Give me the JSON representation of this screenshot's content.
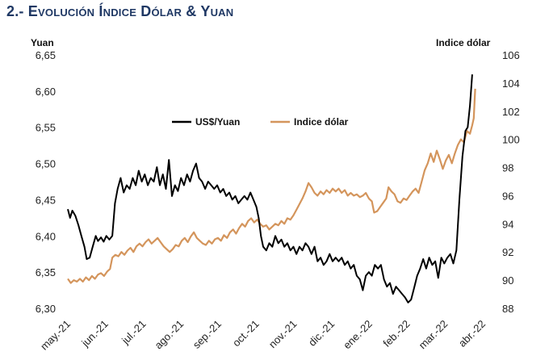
{
  "heading": "2.- Evolución Índice Dólar & Yuan",
  "chart_data": {
    "type": "line",
    "title": "",
    "left_axis": {
      "label": "Yuan",
      "range": [
        6.3,
        6.65
      ],
      "ticks": [
        "6,65",
        "6,60",
        "6,55",
        "6,50",
        "6,45",
        "6,40",
        "6,35",
        "6,30"
      ],
      "tick_values": [
        6.65,
        6.6,
        6.55,
        6.5,
        6.45,
        6.4,
        6.35,
        6.3
      ]
    },
    "right_axis": {
      "label": "Indice dólar",
      "range": [
        88,
        106
      ],
      "ticks": [
        "106",
        "104",
        "102",
        "100",
        "98",
        "96",
        "94",
        "92",
        "90",
        "88"
      ],
      "tick_values": [
        106,
        104,
        102,
        100,
        98,
        96,
        94,
        92,
        90,
        88
      ]
    },
    "x_axis": {
      "labels": [
        "may.-21",
        "jun.-21",
        "jul.-21",
        "ago.-21",
        "sep.-21",
        "oct.-21",
        "nov.-21",
        "dic.-21",
        "ene.-22",
        "feb.-22",
        "mar.-22",
        "abr.-22"
      ],
      "range": [
        0,
        11.3
      ]
    },
    "grid": false,
    "legend_position": "upper-center",
    "series": [
      {
        "name": "US$/Yuan",
        "axis": "left",
        "color": "#000000",
        "points": [
          [
            0.0,
            6.437
          ],
          [
            0.06,
            6.425
          ],
          [
            0.12,
            6.435
          ],
          [
            0.2,
            6.428
          ],
          [
            0.28,
            6.415
          ],
          [
            0.36,
            6.4
          ],
          [
            0.44,
            6.385
          ],
          [
            0.5,
            6.368
          ],
          [
            0.58,
            6.37
          ],
          [
            0.66,
            6.385
          ],
          [
            0.74,
            6.4
          ],
          [
            0.8,
            6.393
          ],
          [
            0.88,
            6.398
          ],
          [
            0.95,
            6.392
          ],
          [
            1.02,
            6.4
          ],
          [
            1.1,
            6.395
          ],
          [
            1.18,
            6.4
          ],
          [
            1.25,
            6.445
          ],
          [
            1.32,
            6.465
          ],
          [
            1.4,
            6.48
          ],
          [
            1.48,
            6.46
          ],
          [
            1.56,
            6.47
          ],
          [
            1.64,
            6.465
          ],
          [
            1.72,
            6.48
          ],
          [
            1.8,
            6.47
          ],
          [
            1.88,
            6.49
          ],
          [
            1.96,
            6.475
          ],
          [
            2.04,
            6.485
          ],
          [
            2.12,
            6.47
          ],
          [
            2.2,
            6.48
          ],
          [
            2.28,
            6.475
          ],
          [
            2.36,
            6.495
          ],
          [
            2.44,
            6.47
          ],
          [
            2.52,
            6.485
          ],
          [
            2.6,
            6.465
          ],
          [
            2.68,
            6.505
          ],
          [
            2.76,
            6.455
          ],
          [
            2.84,
            6.47
          ],
          [
            2.92,
            6.462
          ],
          [
            3.0,
            6.48
          ],
          [
            3.08,
            6.47
          ],
          [
            3.16,
            6.485
          ],
          [
            3.24,
            6.475
          ],
          [
            3.32,
            6.49
          ],
          [
            3.4,
            6.5
          ],
          [
            3.48,
            6.48
          ],
          [
            3.56,
            6.475
          ],
          [
            3.64,
            6.465
          ],
          [
            3.72,
            6.475
          ],
          [
            3.8,
            6.47
          ],
          [
            3.88,
            6.465
          ],
          [
            3.96,
            6.47
          ],
          [
            4.04,
            6.46
          ],
          [
            4.12,
            6.465
          ],
          [
            4.2,
            6.455
          ],
          [
            4.28,
            6.46
          ],
          [
            4.36,
            6.45
          ],
          [
            4.44,
            6.455
          ],
          [
            4.52,
            6.445
          ],
          [
            4.6,
            6.45
          ],
          [
            4.68,
            6.455
          ],
          [
            4.76,
            6.45
          ],
          [
            4.84,
            6.46
          ],
          [
            4.92,
            6.45
          ],
          [
            5.0,
            6.44
          ],
          [
            5.06,
            6.425
          ],
          [
            5.12,
            6.4
          ],
          [
            5.18,
            6.385
          ],
          [
            5.26,
            6.38
          ],
          [
            5.34,
            6.39
          ],
          [
            5.42,
            6.385
          ],
          [
            5.5,
            6.4
          ],
          [
            5.58,
            6.39
          ],
          [
            5.66,
            6.395
          ],
          [
            5.74,
            6.385
          ],
          [
            5.82,
            6.39
          ],
          [
            5.9,
            6.38
          ],
          [
            5.98,
            6.385
          ],
          [
            6.06,
            6.375
          ],
          [
            6.14,
            6.385
          ],
          [
            6.22,
            6.38
          ],
          [
            6.3,
            6.39
          ],
          [
            6.38,
            6.385
          ],
          [
            6.46,
            6.375
          ],
          [
            6.54,
            6.385
          ],
          [
            6.62,
            6.365
          ],
          [
            6.7,
            6.37
          ],
          [
            6.78,
            6.36
          ],
          [
            6.86,
            6.365
          ],
          [
            6.94,
            6.375
          ],
          [
            7.02,
            6.365
          ],
          [
            7.1,
            6.37
          ],
          [
            7.18,
            6.365
          ],
          [
            7.26,
            6.37
          ],
          [
            7.34,
            6.36
          ],
          [
            7.42,
            6.365
          ],
          [
            7.5,
            6.355
          ],
          [
            7.58,
            6.36
          ],
          [
            7.66,
            6.345
          ],
          [
            7.74,
            6.34
          ],
          [
            7.82,
            6.325
          ],
          [
            7.9,
            6.345
          ],
          [
            7.98,
            6.35
          ],
          [
            8.06,
            6.345
          ],
          [
            8.14,
            6.36
          ],
          [
            8.22,
            6.355
          ],
          [
            8.3,
            6.36
          ],
          [
            8.38,
            6.34
          ],
          [
            8.46,
            6.33
          ],
          [
            8.54,
            6.335
          ],
          [
            8.62,
            6.32
          ],
          [
            8.7,
            6.33
          ],
          [
            8.78,
            6.325
          ],
          [
            8.86,
            6.32
          ],
          [
            8.94,
            6.315
          ],
          [
            9.02,
            6.308
          ],
          [
            9.1,
            6.312
          ],
          [
            9.18,
            6.328
          ],
          [
            9.26,
            6.345
          ],
          [
            9.34,
            6.355
          ],
          [
            9.42,
            6.368
          ],
          [
            9.5,
            6.355
          ],
          [
            9.58,
            6.37
          ],
          [
            9.66,
            6.36
          ],
          [
            9.74,
            6.365
          ],
          [
            9.82,
            6.342
          ],
          [
            9.9,
            6.37
          ],
          [
            9.98,
            6.362
          ],
          [
            10.06,
            6.37
          ],
          [
            10.14,
            6.375
          ],
          [
            10.22,
            6.362
          ],
          [
            10.3,
            6.38
          ],
          [
            10.38,
            6.45
          ],
          [
            10.46,
            6.51
          ],
          [
            10.54,
            6.545
          ],
          [
            10.6,
            6.55
          ],
          [
            10.66,
            6.58
          ],
          [
            10.72,
            6.623
          ]
        ]
      },
      {
        "name": "Indice dólar",
        "axis": "right",
        "color": "#d4955c",
        "points": [
          [
            0.0,
            90.1
          ],
          [
            0.08,
            89.8
          ],
          [
            0.16,
            90.0
          ],
          [
            0.24,
            89.9
          ],
          [
            0.32,
            90.1
          ],
          [
            0.4,
            89.9
          ],
          [
            0.48,
            90.2
          ],
          [
            0.56,
            90.0
          ],
          [
            0.64,
            90.3
          ],
          [
            0.72,
            90.1
          ],
          [
            0.8,
            90.4
          ],
          [
            0.88,
            90.5
          ],
          [
            0.96,
            90.3
          ],
          [
            1.04,
            90.6
          ],
          [
            1.12,
            90.8
          ],
          [
            1.18,
            91.6
          ],
          [
            1.26,
            91.8
          ],
          [
            1.34,
            91.7
          ],
          [
            1.42,
            92.0
          ],
          [
            1.5,
            91.8
          ],
          [
            1.58,
            92.1
          ],
          [
            1.66,
            92.3
          ],
          [
            1.74,
            92.0
          ],
          [
            1.82,
            92.4
          ],
          [
            1.9,
            92.6
          ],
          [
            1.98,
            92.4
          ],
          [
            2.06,
            92.7
          ],
          [
            2.14,
            92.9
          ],
          [
            2.22,
            92.6
          ],
          [
            2.3,
            92.8
          ],
          [
            2.38,
            93.0
          ],
          [
            2.46,
            92.7
          ],
          [
            2.54,
            92.4
          ],
          [
            2.62,
            92.2
          ],
          [
            2.7,
            92.0
          ],
          [
            2.78,
            92.2
          ],
          [
            2.86,
            92.5
          ],
          [
            2.94,
            92.4
          ],
          [
            3.02,
            92.8
          ],
          [
            3.1,
            93.0
          ],
          [
            3.18,
            92.7
          ],
          [
            3.26,
            93.1
          ],
          [
            3.34,
            93.4
          ],
          [
            3.42,
            93.0
          ],
          [
            3.5,
            92.8
          ],
          [
            3.58,
            92.6
          ],
          [
            3.66,
            92.5
          ],
          [
            3.74,
            92.8
          ],
          [
            3.82,
            92.6
          ],
          [
            3.9,
            92.9
          ],
          [
            3.98,
            93.0
          ],
          [
            4.06,
            92.8
          ],
          [
            4.14,
            93.2
          ],
          [
            4.22,
            93.0
          ],
          [
            4.3,
            93.4
          ],
          [
            4.38,
            93.6
          ],
          [
            4.46,
            93.3
          ],
          [
            4.54,
            93.7
          ],
          [
            4.62,
            94.0
          ],
          [
            4.7,
            93.8
          ],
          [
            4.78,
            94.2
          ],
          [
            4.86,
            94.4
          ],
          [
            4.94,
            94.1
          ],
          [
            5.02,
            94.3
          ],
          [
            5.1,
            94.0
          ],
          [
            5.18,
            93.8
          ],
          [
            5.26,
            93.9
          ],
          [
            5.34,
            93.6
          ],
          [
            5.42,
            93.8
          ],
          [
            5.5,
            94.0
          ],
          [
            5.58,
            93.9
          ],
          [
            5.66,
            94.2
          ],
          [
            5.74,
            94.0
          ],
          [
            5.82,
            94.4
          ],
          [
            5.9,
            94.3
          ],
          [
            5.98,
            94.6
          ],
          [
            6.06,
            95.0
          ],
          [
            6.14,
            95.4
          ],
          [
            6.22,
            95.8
          ],
          [
            6.3,
            96.3
          ],
          [
            6.38,
            96.9
          ],
          [
            6.46,
            96.6
          ],
          [
            6.54,
            96.2
          ],
          [
            6.62,
            96.0
          ],
          [
            6.7,
            96.3
          ],
          [
            6.78,
            96.1
          ],
          [
            6.86,
            96.4
          ],
          [
            6.94,
            96.2
          ],
          [
            7.02,
            96.5
          ],
          [
            7.1,
            96.3
          ],
          [
            7.18,
            96.5
          ],
          [
            7.26,
            96.2
          ],
          [
            7.34,
            96.4
          ],
          [
            7.42,
            96.0
          ],
          [
            7.5,
            96.2
          ],
          [
            7.58,
            96.0
          ],
          [
            7.66,
            96.1
          ],
          [
            7.74,
            95.9
          ],
          [
            7.82,
            96.0
          ],
          [
            7.9,
            96.2
          ],
          [
            7.98,
            95.8
          ],
          [
            8.06,
            95.6
          ],
          [
            8.12,
            94.8
          ],
          [
            8.2,
            94.9
          ],
          [
            8.28,
            95.2
          ],
          [
            8.36,
            95.5
          ],
          [
            8.44,
            95.8
          ],
          [
            8.5,
            96.6
          ],
          [
            8.58,
            96.3
          ],
          [
            8.66,
            96.1
          ],
          [
            8.74,
            95.6
          ],
          [
            8.82,
            95.5
          ],
          [
            8.9,
            95.8
          ],
          [
            8.98,
            95.7
          ],
          [
            9.06,
            96.0
          ],
          [
            9.14,
            96.3
          ],
          [
            9.22,
            96.5
          ],
          [
            9.3,
            96.2
          ],
          [
            9.38,
            97.0
          ],
          [
            9.46,
            97.8
          ],
          [
            9.54,
            98.3
          ],
          [
            9.62,
            99.0
          ],
          [
            9.7,
            98.4
          ],
          [
            9.78,
            99.2
          ],
          [
            9.86,
            98.6
          ],
          [
            9.94,
            97.9
          ],
          [
            10.02,
            98.5
          ],
          [
            10.1,
            98.9
          ],
          [
            10.18,
            98.3
          ],
          [
            10.26,
            99.0
          ],
          [
            10.34,
            99.6
          ],
          [
            10.42,
            100.0
          ],
          [
            10.5,
            99.8
          ],
          [
            10.58,
            100.6
          ],
          [
            10.66,
            100.4
          ],
          [
            10.72,
            101.0
          ],
          [
            10.76,
            101.5
          ],
          [
            10.8,
            103.6
          ]
        ]
      }
    ]
  }
}
